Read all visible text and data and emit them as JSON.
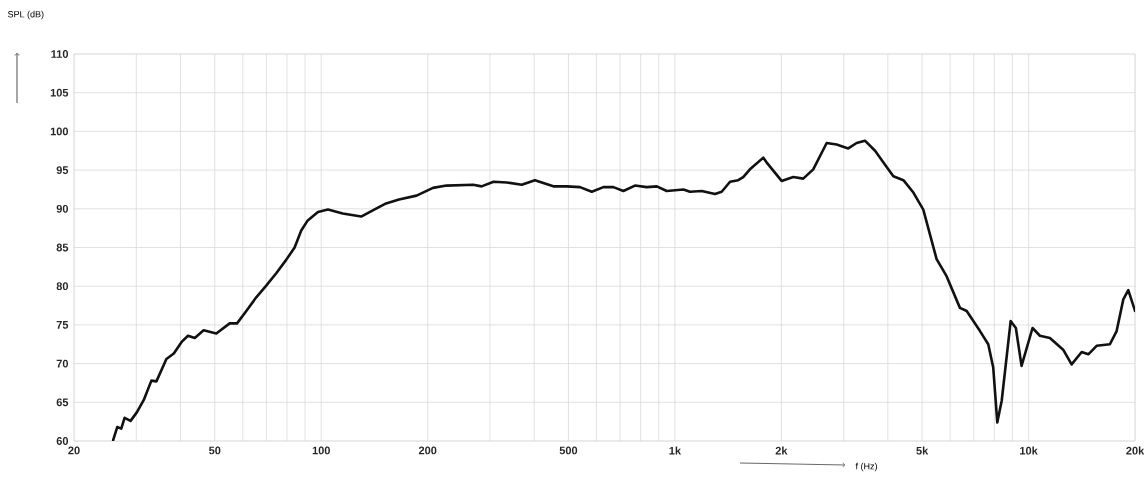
{
  "chart_data": {
    "type": "line",
    "xlabel": "f (Hz)",
    "ylabel": "SPL (dB)",
    "x": [
      25.8,
      26.5,
      27.2,
      27.8,
      28.9,
      30.1,
      31.5,
      33.1,
      34.2,
      36.5,
      38.3,
      40.3,
      42.0,
      43.9,
      46.5,
      50.5,
      55.1,
      57.8,
      61.4,
      65.6,
      70.0,
      74.7,
      79.6,
      84.1,
      87.8,
      91.6,
      97.9,
      104.5,
      115,
      129.7,
      139.9,
      152.5,
      166,
      186,
      207,
      226,
      269,
      284,
      307,
      335,
      369,
      402,
      453,
      494,
      539,
      582,
      628,
      670,
      715,
      771,
      832,
      889,
      948,
      1057,
      1103,
      1191,
      1298,
      1356,
      1432,
      1510,
      1560,
      1630,
      1778,
      1816,
      2003,
      2161,
      2306,
      2461,
      2686,
      2866,
      3091,
      3265,
      3446,
      3681,
      3928,
      4146,
      4426,
      4723,
      5038,
      5494,
      5863,
      6396,
      6684,
      7288,
      7692,
      7944,
      8156,
      8395,
      8898,
      9205,
      9552,
      10260,
      10765,
      11487,
      12524,
      13232,
      14130,
      14754,
      15572,
      16980,
      17740,
      18530,
      19140,
      20000
    ],
    "values": [
      60.1,
      61.8,
      61.6,
      63.0,
      62.6,
      63.7,
      65.3,
      67.8,
      67.7,
      70.6,
      71.3,
      72.8,
      73.6,
      73.3,
      74.3,
      73.9,
      75.2,
      75.2,
      76.8,
      78.6,
      80.1,
      81.7,
      83.4,
      85.0,
      87.2,
      88.5,
      89.6,
      89.9,
      89.4,
      89.0,
      89.8,
      90.7,
      91.2,
      91.7,
      92.7,
      93.0,
      93.1,
      92.9,
      93.5,
      93.4,
      93.1,
      93.7,
      92.9,
      92.9,
      92.8,
      92.2,
      92.8,
      92.8,
      92.3,
      93.0,
      92.8,
      92.9,
      92.3,
      92.5,
      92.2,
      92.3,
      91.9,
      92.2,
      93.5,
      93.7,
      94.1,
      95.1,
      96.6,
      96.0,
      93.6,
      94.1,
      93.9,
      95.1,
      98.5,
      98.3,
      97.8,
      98.5,
      98.8,
      97.5,
      95.7,
      94.2,
      93.7,
      92.1,
      89.9,
      83.5,
      81.3,
      77.2,
      76.8,
      74.2,
      72.5,
      69.5,
      62.4,
      65.2,
      75.5,
      74.6,
      69.7,
      74.6,
      73.6,
      73.3,
      71.8,
      69.9,
      71.5,
      71.2,
      72.3,
      72.5,
      74.2,
      78.3,
      79.5,
      76.8
    ],
    "color": "#111111",
    "xlim": [
      20,
      20000
    ],
    "ylim": [
      60,
      110
    ],
    "xticks": [
      20,
      {
        "value": 30,
        "label": null
      },
      {
        "value": 40,
        "label": null
      },
      50,
      {
        "value": 60,
        "label": null
      },
      {
        "value": 70,
        "label": null
      },
      {
        "value": 80,
        "label": null
      },
      {
        "value": 90,
        "label": null
      },
      100,
      200,
      {
        "value": 300,
        "label": null
      },
      {
        "value": 400,
        "label": null
      },
      500,
      {
        "value": 600,
        "label": null
      },
      {
        "value": 700,
        "label": null
      },
      {
        "value": 800,
        "label": null
      },
      {
        "value": 900,
        "label": null
      },
      {
        "value": 1000,
        "label": "1k"
      },
      {
        "value": 2000,
        "label": "2k"
      },
      {
        "value": 3000,
        "label": null
      },
      {
        "value": 4000,
        "label": null
      },
      {
        "value": 5000,
        "label": "5k"
      },
      {
        "value": 6000,
        "label": null
      },
      {
        "value": 7000,
        "label": null
      },
      {
        "value": 8000,
        "label": null
      },
      {
        "value": 9000,
        "label": null
      },
      {
        "value": 10000,
        "label": "10k"
      },
      {
        "value": 20000,
        "label": "20k"
      }
    ],
    "yticks": [
      60,
      65,
      70,
      75,
      80,
      85,
      90,
      95,
      100,
      105,
      110
    ],
    "log": "x",
    "grid": true,
    "marker": "none",
    "line_style": "solid"
  }
}
